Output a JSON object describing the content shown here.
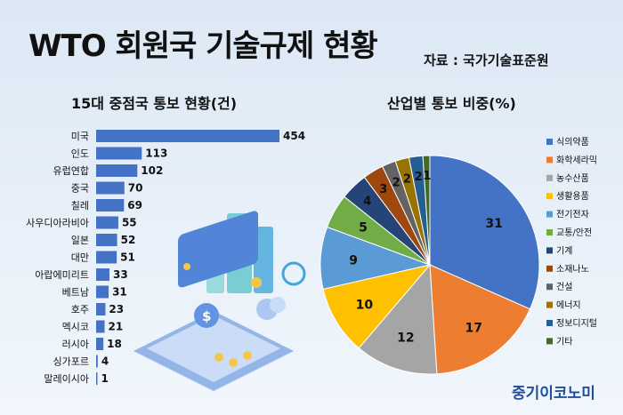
{
  "title": "WTO 회원국 기술규제 현황",
  "source": "자료 : 국가기술표준원",
  "brand": "중기이코노미",
  "colors": {
    "bar": "#4472c4",
    "background": "#dce8f5"
  },
  "chart_data": [
    {
      "type": "bar",
      "orientation": "horizontal",
      "title": "15대 중점국 통보 현황(건)",
      "categories": [
        "미국",
        "인도",
        "유럽연합",
        "중국",
        "칠레",
        "사우디아라비아",
        "일본",
        "대만",
        "아랍에미리트",
        "베트남",
        "호주",
        "멕시코",
        "러시아",
        "싱가포르",
        "말레이시아"
      ],
      "values": [
        454,
        113,
        102,
        70,
        69,
        55,
        52,
        51,
        33,
        31,
        23,
        21,
        18,
        4,
        1
      ],
      "xlim": [
        0,
        454
      ]
    },
    {
      "type": "pie",
      "title": "산업별 통보 비중(%)",
      "labels": [
        "식의약품",
        "화학세라믹",
        "농수산품",
        "생활용품",
        "전기전자",
        "교통/안전",
        "기계",
        "소재나노",
        "건설",
        "에너지",
        "정보디지털",
        "기타"
      ],
      "values": [
        31,
        17,
        12,
        10,
        9,
        5,
        4,
        3,
        2,
        2,
        2,
        1
      ],
      "colors": [
        "#4472c4",
        "#ed7d31",
        "#a5a5a5",
        "#ffc000",
        "#5b9bd5",
        "#70ad47",
        "#264478",
        "#9e480e",
        "#636363",
        "#997300",
        "#255e91",
        "#43682b"
      ],
      "legend": "right"
    }
  ]
}
